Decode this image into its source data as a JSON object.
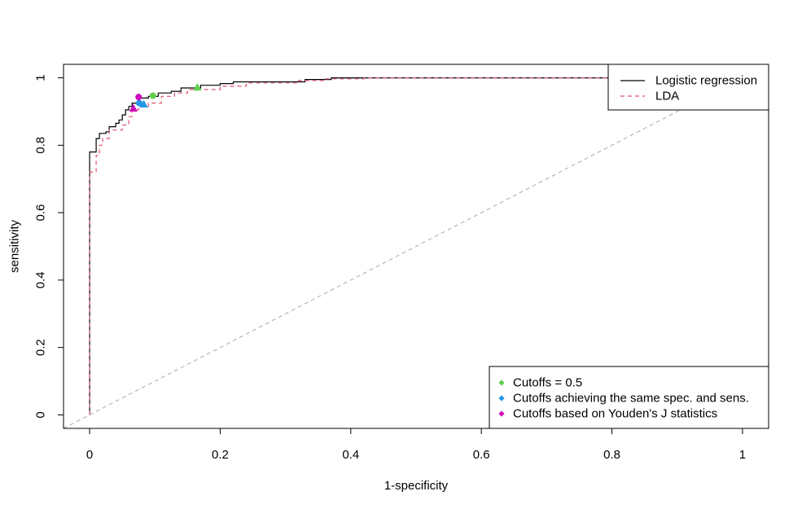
{
  "chart_data": {
    "type": "line",
    "title": "",
    "xlabel": "1-specificity",
    "ylabel": "sensitivity",
    "xlim": [
      -0.04,
      1.04
    ],
    "ylim": [
      -0.04,
      1.04
    ],
    "x_ticks": [
      "0",
      "0.2",
      "0.4",
      "0.6",
      "0.8",
      "1"
    ],
    "x_tick_values": [
      0,
      0.2,
      0.4,
      0.6,
      0.8,
      1
    ],
    "y_ticks": [
      "0",
      "0.2",
      "0.4",
      "0.6",
      "0.8",
      "1"
    ],
    "y_tick_values": [
      0,
      0.2,
      0.4,
      0.6,
      0.8,
      1
    ],
    "grid": false,
    "diagonal_reference": {
      "color": "#aaaaaa",
      "style": "dashed"
    },
    "series": [
      {
        "name": "Logistic regression",
        "color": "#000000",
        "style": "solid",
        "points": [
          [
            0,
            0
          ],
          [
            0,
            0.78
          ],
          [
            0.01,
            0.78
          ],
          [
            0.01,
            0.82
          ],
          [
            0.015,
            0.82
          ],
          [
            0.015,
            0.835
          ],
          [
            0.025,
            0.835
          ],
          [
            0.025,
            0.84
          ],
          [
            0.03,
            0.84
          ],
          [
            0.03,
            0.855
          ],
          [
            0.04,
            0.855
          ],
          [
            0.04,
            0.865
          ],
          [
            0.045,
            0.865
          ],
          [
            0.045,
            0.875
          ],
          [
            0.05,
            0.875
          ],
          [
            0.05,
            0.89
          ],
          [
            0.055,
            0.89
          ],
          [
            0.055,
            0.905
          ],
          [
            0.06,
            0.905
          ],
          [
            0.06,
            0.915
          ],
          [
            0.065,
            0.915
          ],
          [
            0.065,
            0.925
          ],
          [
            0.075,
            0.925
          ],
          [
            0.075,
            0.94
          ],
          [
            0.09,
            0.94
          ],
          [
            0.09,
            0.945
          ],
          [
            0.105,
            0.945
          ],
          [
            0.105,
            0.955
          ],
          [
            0.125,
            0.955
          ],
          [
            0.125,
            0.96
          ],
          [
            0.14,
            0.96
          ],
          [
            0.14,
            0.97
          ],
          [
            0.17,
            0.97
          ],
          [
            0.17,
            0.978
          ],
          [
            0.2,
            0.978
          ],
          [
            0.2,
            0.983
          ],
          [
            0.22,
            0.983
          ],
          [
            0.22,
            0.988
          ],
          [
            0.33,
            0.988
          ],
          [
            0.33,
            0.995
          ],
          [
            0.37,
            0.995
          ],
          [
            0.37,
            1.0
          ],
          [
            1.0,
            1.0
          ]
        ]
      },
      {
        "name": "LDA",
        "color": "#df536b",
        "style": "dashed",
        "points": [
          [
            0,
            0
          ],
          [
            0,
            0.72
          ],
          [
            0.01,
            0.72
          ],
          [
            0.01,
            0.77
          ],
          [
            0.015,
            0.77
          ],
          [
            0.015,
            0.8
          ],
          [
            0.02,
            0.8
          ],
          [
            0.02,
            0.82
          ],
          [
            0.03,
            0.82
          ],
          [
            0.03,
            0.845
          ],
          [
            0.05,
            0.845
          ],
          [
            0.05,
            0.86
          ],
          [
            0.06,
            0.86
          ],
          [
            0.06,
            0.885
          ],
          [
            0.065,
            0.885
          ],
          [
            0.065,
            0.905
          ],
          [
            0.075,
            0.905
          ],
          [
            0.075,
            0.915
          ],
          [
            0.09,
            0.915
          ],
          [
            0.09,
            0.925
          ],
          [
            0.11,
            0.925
          ],
          [
            0.11,
            0.945
          ],
          [
            0.13,
            0.945
          ],
          [
            0.13,
            0.955
          ],
          [
            0.15,
            0.955
          ],
          [
            0.15,
            0.965
          ],
          [
            0.2,
            0.965
          ],
          [
            0.2,
            0.975
          ],
          [
            0.24,
            0.975
          ],
          [
            0.24,
            0.985
          ],
          [
            0.32,
            0.985
          ],
          [
            0.32,
            0.992
          ],
          [
            0.36,
            0.992
          ],
          [
            0.36,
            0.997
          ],
          [
            0.42,
            0.997
          ],
          [
            0.42,
            1.0
          ],
          [
            1.0,
            1.0
          ]
        ]
      }
    ],
    "cutoff_points": [
      {
        "group": "Cutoffs = 0.5",
        "series": "Logistic regression",
        "shape": "circle",
        "color": "#61d04f",
        "x": 0.097,
        "y": 0.947
      },
      {
        "group": "Cutoffs = 0.5",
        "series": "LDA",
        "shape": "triangle",
        "color": "#61d04f",
        "x": 0.165,
        "y": 0.972
      },
      {
        "group": "Cutoffs achieving the same spec. and sens.",
        "series": "Logistic regression",
        "shape": "circle",
        "color": "#2297e6",
        "x": 0.076,
        "y": 0.925
      },
      {
        "group": "Cutoffs achieving the same spec. and sens.",
        "series": "LDA",
        "shape": "triangle",
        "color": "#2297e6",
        "x": 0.083,
        "y": 0.922
      },
      {
        "group": "Cutoffs based on Youden's J statistics",
        "series": "Logistic regression",
        "shape": "circle",
        "color": "#cd0bbc",
        "x": 0.075,
        "y": 0.943
      },
      {
        "group": "Cutoffs based on Youden's J statistics",
        "series": "LDA",
        "shape": "triangle",
        "color": "#cd0bbc",
        "x": 0.067,
        "y": 0.91
      }
    ],
    "legends": [
      {
        "placement": "top-right",
        "entries": [
          {
            "label": "Logistic regression",
            "color": "#000000",
            "style": "solid"
          },
          {
            "label": "LDA",
            "color": "#df536b",
            "style": "dashed"
          }
        ]
      },
      {
        "placement": "bottom-right",
        "entries": [
          {
            "label": "Cutoffs = 0.5",
            "color": "#61d04f"
          },
          {
            "label": "Cutoffs achieving the same spec. and sens.",
            "color": "#2297e6"
          },
          {
            "label": "Cutoffs based on Youden's J statistics",
            "color": "#cd0bbc"
          }
        ]
      }
    ]
  }
}
